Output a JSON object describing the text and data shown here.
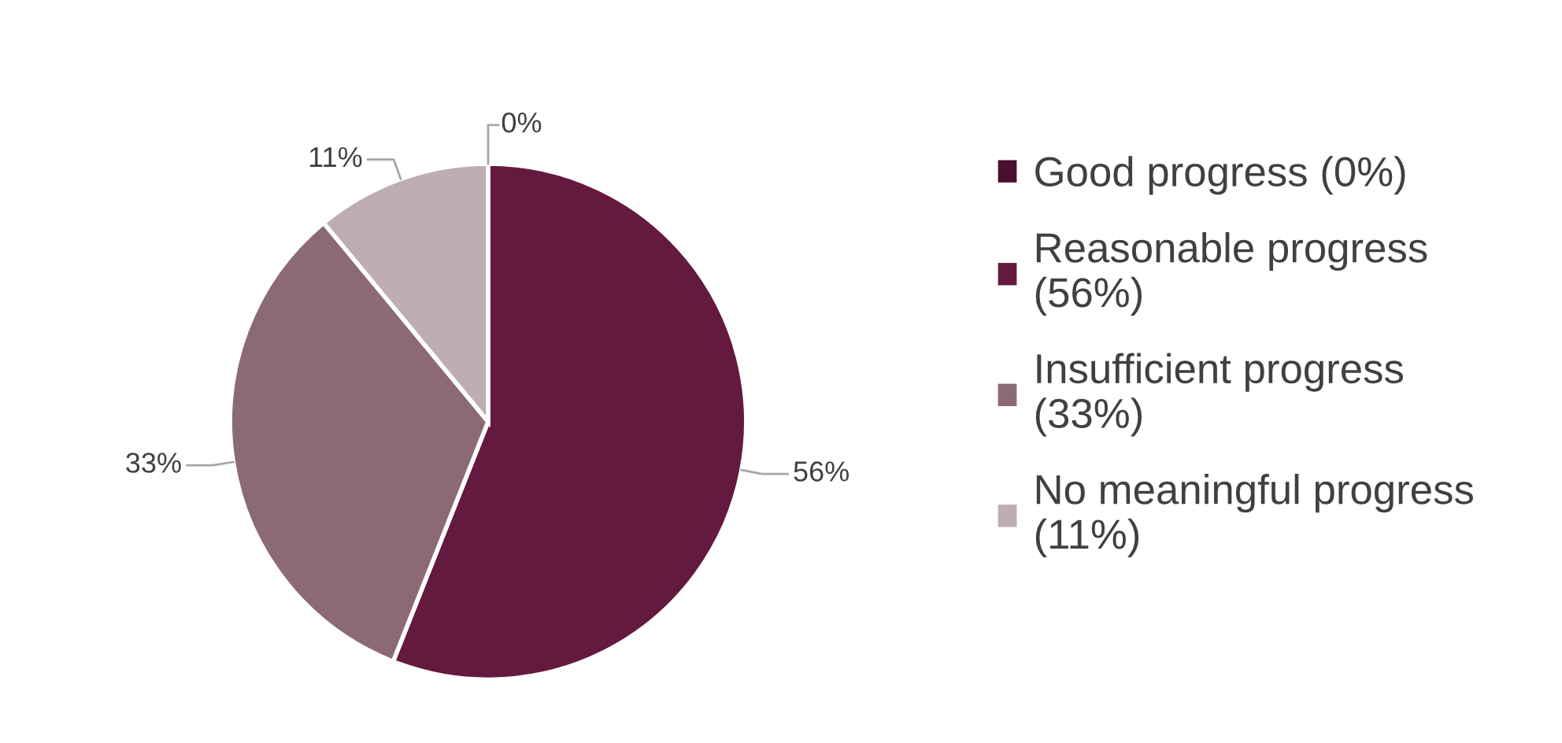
{
  "chart_data": {
    "type": "pie",
    "categories": [
      "Good progress (0%)",
      "Reasonable progress (56%)",
      "Insufficient progress (33%)",
      "No meaningful progress (11%)"
    ],
    "values": [
      0,
      56,
      33,
      11
    ],
    "colors": [
      "#4a0f2c",
      "#641a3e",
      "#8c6a75",
      "#beadb3"
    ],
    "value_labels": [
      "0%",
      "56%",
      "33%",
      "11%"
    ],
    "legend": "right"
  }
}
